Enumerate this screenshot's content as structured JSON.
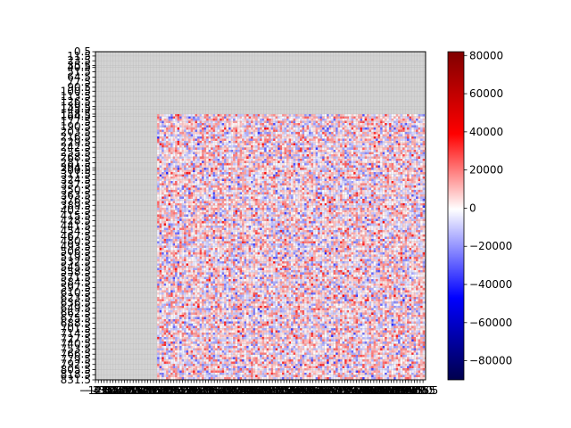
{
  "chart_data": {
    "type": "heatmap",
    "title": "",
    "xlabel": "",
    "ylabel": "",
    "x_range": [
      -12.5,
      955.5
    ],
    "y_range": [
      0.5,
      831.5
    ],
    "y_inverted": true,
    "grid": true,
    "masked_color": "#d3d3d3",
    "data_region": {
      "x": [
        168.5,
        955.5
      ],
      "y": [
        158.5,
        831.5
      ]
    },
    "x_ticks": {
      "step": 8.5,
      "visible_labels": [
        "−12.5",
        "955.5"
      ]
    },
    "y_ticks": {
      "labels": [
        "0.5",
        "11.5",
        "23.5",
        "35.5",
        "40.5",
        "51.5",
        "64.5",
        "77.5",
        "90.5",
        "100.5",
        "113.5",
        "126.5",
        "139.5",
        "145.5",
        "158.5",
        "164.5",
        "177.5",
        "190.5",
        "203.5",
        "216.5",
        "229.5",
        "242.5",
        "255.5",
        "268.5",
        "281.5",
        "294.5",
        "300.5",
        "311.5",
        "324.5",
        "337.5",
        "350.5",
        "363.5",
        "376.5",
        "389.5",
        "402.5",
        "415.5",
        "428.5",
        "441.5",
        "454.5",
        "467.5",
        "480.5",
        "493.5",
        "506.5",
        "519.5",
        "532.5",
        "545.5",
        "558.5",
        "571.5",
        "584.5",
        "597.5",
        "610.5",
        "623.5",
        "636.5",
        "649.5",
        "662.5",
        "675.5",
        "688.5",
        "701.5",
        "714.5",
        "727.5",
        "740.5",
        "753.5",
        "766.5",
        "779.5",
        "792.5",
        "805.5",
        "818.5",
        "831.5"
      ]
    },
    "colorbar": {
      "colormap": "seismic",
      "min": -90000,
      "max": 82000,
      "ticks": [
        80000,
        60000,
        40000,
        20000,
        0,
        -20000,
        -40000,
        -60000,
        -80000
      ],
      "tick_labels": [
        "80000",
        "60000",
        "40000",
        "20000",
        "0",
        "−20000",
        "−40000",
        "−60000",
        "−80000"
      ]
    },
    "value_distribution": "noisy, roughly symmetric around 0, mostly within ±40000"
  }
}
